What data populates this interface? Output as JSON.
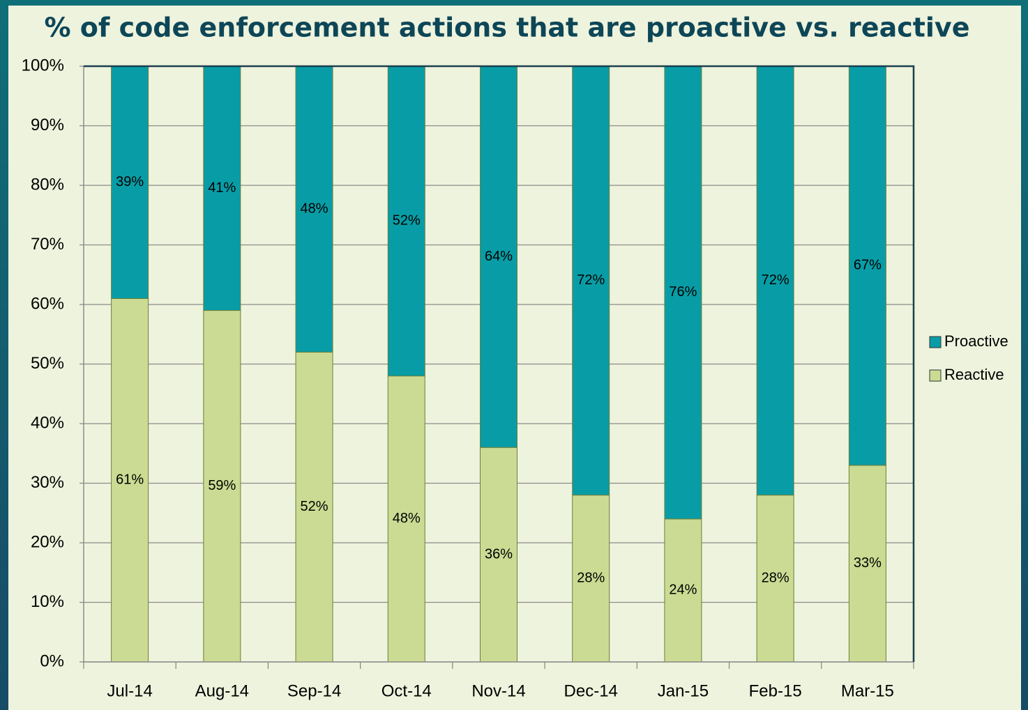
{
  "chart_data": {
    "type": "stacked_bar_100",
    "title": "% of code enforcement actions that are proactive vs. reactive",
    "categories": [
      "Jul-14",
      "Aug-14",
      "Sep-14",
      "Oct-14",
      "Nov-14",
      "Dec-14",
      "Jan-15",
      "Feb-15",
      "Mar-15"
    ],
    "series": [
      {
        "name": "Reactive",
        "color": "#cbdb93",
        "values": [
          61,
          59,
          52,
          48,
          36,
          28,
          24,
          28,
          33
        ],
        "value_labels": [
          "61%",
          "59%",
          "52%",
          "48%",
          "36%",
          "28%",
          "24%",
          "28%",
          "33%"
        ]
      },
      {
        "name": "Proactive",
        "color": "#089da6",
        "values": [
          39,
          41,
          48,
          52,
          64,
          72,
          76,
          72,
          67
        ],
        "value_labels": [
          "39%",
          "41%",
          "48%",
          "52%",
          "64%",
          "72%",
          "76%",
          "72%",
          "67%"
        ]
      }
    ],
    "ylim": [
      0,
      100
    ],
    "yticks": [
      {
        "value": 0,
        "label": "0%"
      },
      {
        "value": 10,
        "label": "10%"
      },
      {
        "value": 20,
        "label": "20%"
      },
      {
        "value": 30,
        "label": "30%"
      },
      {
        "value": 40,
        "label": "40%"
      },
      {
        "value": 50,
        "label": "50%"
      },
      {
        "value": 60,
        "label": "60%"
      },
      {
        "value": 70,
        "label": "70%"
      },
      {
        "value": 80,
        "label": "80%"
      },
      {
        "value": 90,
        "label": "90%"
      },
      {
        "value": 100,
        "label": "100%"
      }
    ],
    "grid": true,
    "legend": "right"
  }
}
